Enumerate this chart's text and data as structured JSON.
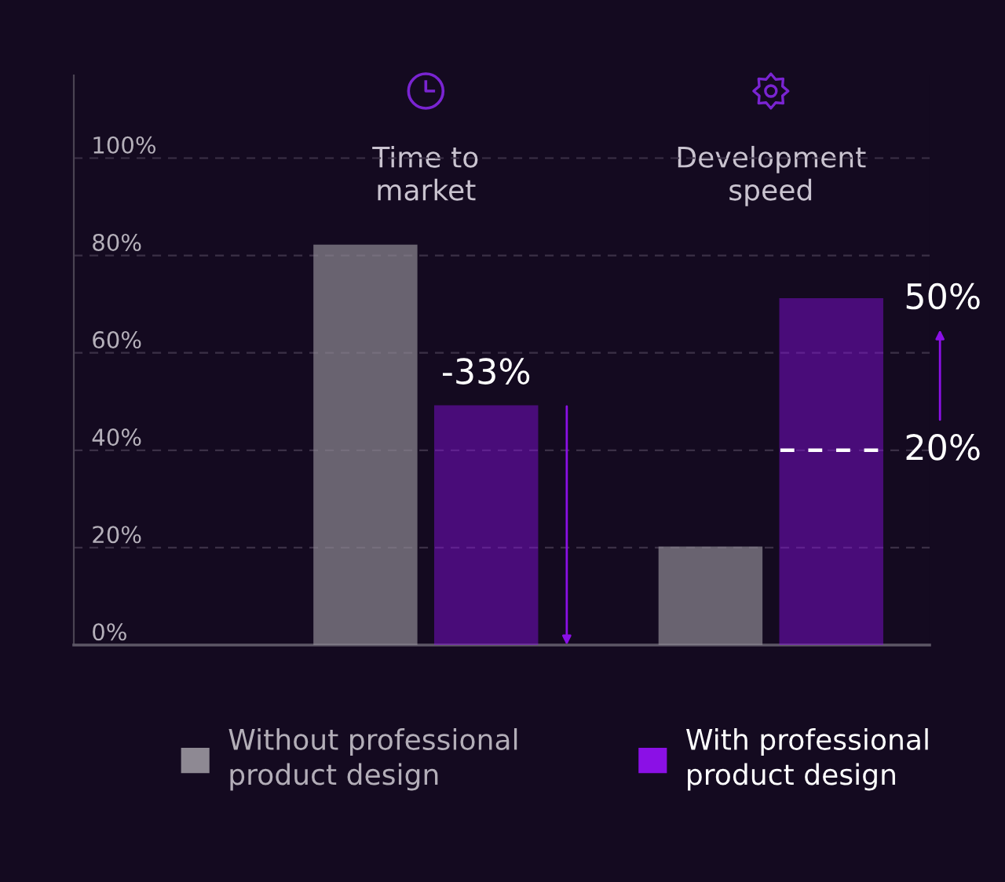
{
  "chart_data": {
    "type": "bar",
    "categories": [
      "Time to market",
      "Development speed"
    ],
    "series": [
      {
        "name": "Without professional product design",
        "color": "#8e8993",
        "values": [
          82,
          20
        ]
      },
      {
        "name": "With professional product design",
        "color": "#8b10e6",
        "values": [
          49,
          71
        ]
      }
    ],
    "ylim": [
      0,
      117
    ],
    "yticks": [
      {
        "value": 0,
        "label": "0%"
      },
      {
        "value": 20,
        "label": "20%"
      },
      {
        "value": 40,
        "label": "40%"
      },
      {
        "value": 60,
        "label": "60%"
      },
      {
        "value": 80,
        "label": "80%"
      },
      {
        "value": 100,
        "label": "100%"
      }
    ],
    "grid": "y",
    "legend": "bottom",
    "ref_lines": [
      {
        "axis": "y",
        "value": 40,
        "color": "#ffffff",
        "line_style": "dashed"
      }
    ],
    "annotations": [
      "-33%",
      "50%",
      "20%"
    ]
  }
}
